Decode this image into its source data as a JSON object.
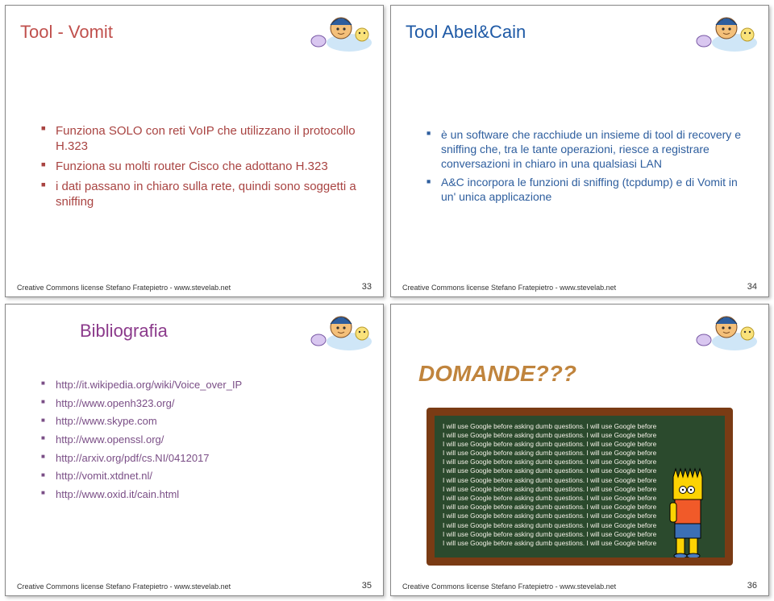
{
  "colors": {
    "title_slide33": "#c0504d",
    "title_slide34": "#1f5aa6",
    "title_slide35": "#8b3a8b",
    "title_slide36": "#c0843d",
    "bullet_slide33": "#a94442",
    "bullet_slide34": "#2e5e9e",
    "bullet_slide35": "#7a4e86",
    "chalkboard_bg": "#2b4a2d",
    "chalkboard_border": "#7a3b14",
    "chalk_text": "#f5f2e8"
  },
  "fontsizes": {
    "title": 22,
    "bullet_s33": 15,
    "bullet_s34": 14,
    "bullet_s35": 13,
    "domande": 28,
    "footer": 9
  },
  "footer_text": "Creative Commons license  Stefano Fratepietro - www.stevelab.net",
  "slides": {
    "s33": {
      "title": "Tool - Vomit",
      "page": "33",
      "bullets": [
        "Funziona SOLO con reti VoIP che utilizzano il protocollo H.323",
        "Funziona su molti router Cisco che adottano H.323",
        "i dati passano in chiaro sulla rete, quindi sono soggetti a sniffing"
      ]
    },
    "s34": {
      "title": "Tool Abel&Cain",
      "page": "34",
      "bullets": [
        "è un software che racchiude un insieme di tool di recovery e sniffing che, tra le tante operazioni, riesce a registrare conversazioni in chiaro in una qualsiasi LAN",
        "A&C incorpora le funzioni di sniffing (tcpdump) e di Vomit in un' unica applicazione"
      ]
    },
    "s35": {
      "title": "Bibliografia",
      "page": "35",
      "bullets": [
        "http://it.wikipedia.org/wiki/Voice_over_IP",
        "http://www.openh323.org/",
        "http://www.skype.com",
        "http://www.openssl.org/",
        "http://arxiv.org/pdf/cs.NI/0412017",
        "http://vomit.xtdnet.nl/",
        "http://www.oxid.it/cain.html"
      ]
    },
    "s36": {
      "title": "DOMANDE???",
      "page": "36",
      "chalk_line": "I will use Google before asking dumb questions. I will use Google before",
      "chalk_lines_count": 14
    }
  }
}
